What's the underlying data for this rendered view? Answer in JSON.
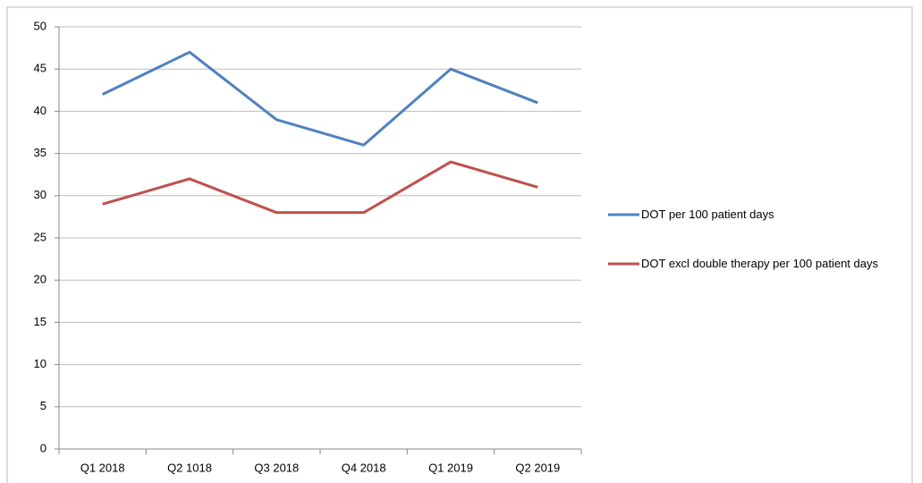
{
  "chart_data": {
    "type": "line",
    "categories": [
      "Q1 2018",
      "Q2 1018",
      "Q3 2018",
      "Q4 2018",
      "Q1 2019",
      "Q2 2019"
    ],
    "series": [
      {
        "name": "DOT per 100 patient days",
        "color": "#4f81bd",
        "values": [
          42,
          47,
          39,
          36,
          45,
          41
        ]
      },
      {
        "name": "DOT excl double therapy per 100 patient days",
        "color": "#c0504d",
        "values": [
          29,
          32,
          28,
          28,
          34,
          31
        ]
      }
    ],
    "ylim": [
      0,
      50
    ],
    "yticks": [
      0,
      5,
      10,
      15,
      20,
      25,
      30,
      35,
      40,
      45,
      50
    ],
    "grid": true,
    "legend": "right"
  }
}
